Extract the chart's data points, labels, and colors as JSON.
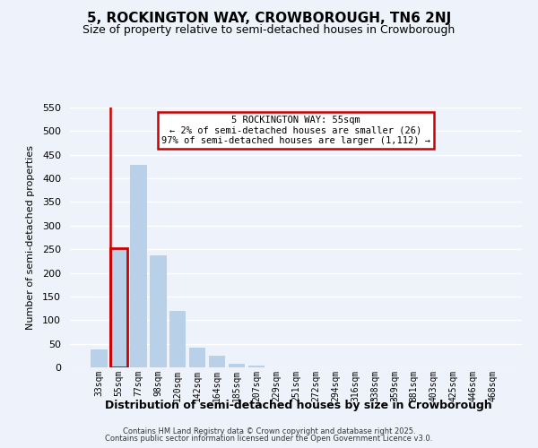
{
  "title": "5, ROCKINGTON WAY, CROWBOROUGH, TN6 2NJ",
  "subtitle": "Size of property relative to semi-detached houses in Crowborough",
  "bar_labels": [
    "33sqm",
    "55sqm",
    "77sqm",
    "98sqm",
    "120sqm",
    "142sqm",
    "164sqm",
    "185sqm",
    "207sqm",
    "229sqm",
    "251sqm",
    "272sqm",
    "294sqm",
    "316sqm",
    "338sqm",
    "359sqm",
    "381sqm",
    "403sqm",
    "425sqm",
    "446sqm",
    "468sqm"
  ],
  "bar_values": [
    38,
    253,
    428,
    237,
    119,
    41,
    24,
    8,
    3,
    0,
    0,
    0,
    0,
    0,
    0,
    0,
    0,
    0,
    0,
    0,
    0
  ],
  "highlight_bar_index": 1,
  "bar_color": "#b8d0e8",
  "highlight_bar_edge_color": "#cc0000",
  "annotation_text": "5 ROCKINGTON WAY: 55sqm\n← 2% of semi-detached houses are smaller (26)\n97% of semi-detached houses are larger (1,112) →",
  "annotation_box_edge_color": "#cc0000",
  "ylabel": "Number of semi-detached properties",
  "xlabel": "Distribution of semi-detached houses by size in Crowborough",
  "ylim": [
    0,
    550
  ],
  "yticks": [
    0,
    50,
    100,
    150,
    200,
    250,
    300,
    350,
    400,
    450,
    500,
    550
  ],
  "footer_line1": "Contains HM Land Registry data © Crown copyright and database right 2025.",
  "footer_line2": "Contains public sector information licensed under the Open Government Licence v3.0.",
  "bg_color": "#eef2fb",
  "grid_color": "#ffffff",
  "title_fontsize": 11,
  "subtitle_fontsize": 9
}
